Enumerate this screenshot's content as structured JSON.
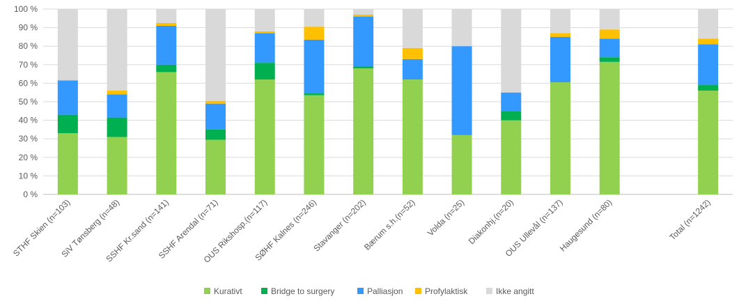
{
  "chart_data": {
    "type": "bar",
    "stacked": true,
    "categories": [
      "STHF Skien (n=103)",
      "SiV Tønsberg (n=48)",
      "SSHF Kr.sand (n=141)",
      "SSHF Arendal (n=71)",
      "OUS Rikshosp.(n=117)",
      "SØHF Kalnes (n=246)",
      "Stavanger (n=202)",
      "Bærum s.h.(n=52)",
      "Volda (n=25)",
      "Diakonhj.(n=20)",
      "OUS Ullevål (n=137)",
      "Haugesund (n=80)",
      "",
      "Total (n=1242)"
    ],
    "series": [
      {
        "name": "Kurativt",
        "color": "#92d050",
        "values": [
          33,
          31,
          66,
          29.5,
          62,
          53.5,
          68,
          62,
          32,
          40,
          60.5,
          71.5,
          null,
          56
        ]
      },
      {
        "name": "Bridge to surgery",
        "color": "#00b050",
        "values": [
          10,
          10.5,
          4,
          5.5,
          9,
          1,
          1,
          0,
          0,
          5,
          0,
          2.5,
          null,
          3
        ]
      },
      {
        "name": "Palliasjon",
        "color": "#3399ff",
        "values": [
          18.5,
          12.5,
          21,
          14,
          16,
          29,
          27,
          11,
          48,
          10,
          24.5,
          10,
          null,
          22
        ]
      },
      {
        "name": "Profylaktisk",
        "color": "#ffc000",
        "values": [
          0,
          2,
          1.5,
          1.5,
          1,
          7,
          1,
          6,
          0,
          0,
          2,
          5,
          null,
          3
        ]
      },
      {
        "name": "Ikke angitt",
        "color": "#d9d9d9",
        "values": [
          38.5,
          44,
          7.5,
          49.5,
          12,
          9.5,
          3,
          21,
          20,
          45,
          13,
          11,
          null,
          16
        ]
      }
    ],
    "yticks": [
      "0 %",
      "10 %",
      "20 %",
      "30 %",
      "40 %",
      "50 %",
      "60 %",
      "70 %",
      "80 %",
      "90 %",
      "100 %"
    ],
    "ylim": [
      0,
      100
    ],
    "grid": true,
    "legend_position": "bottom"
  }
}
